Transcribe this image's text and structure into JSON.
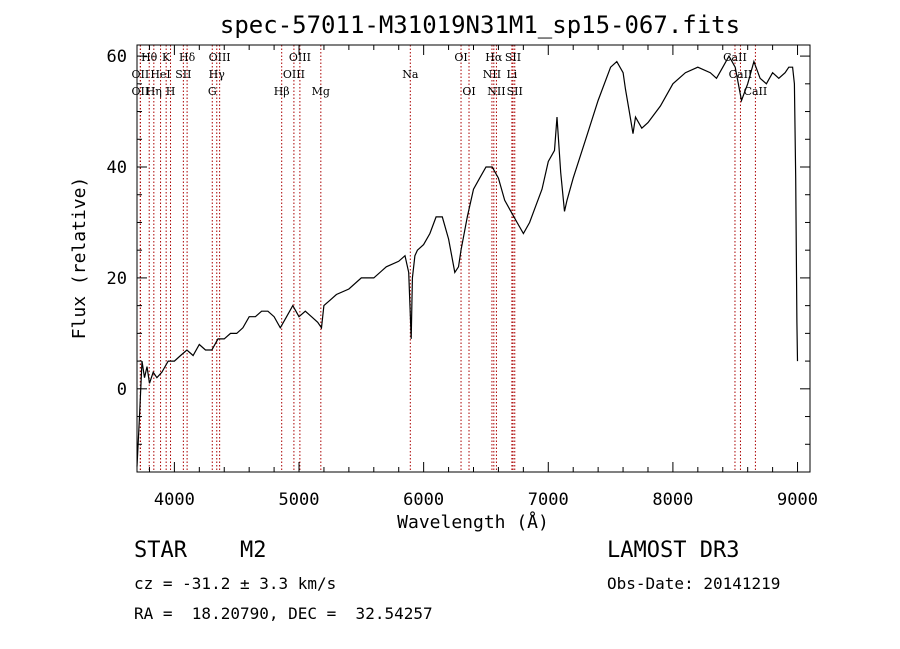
{
  "chart_data": {
    "type": "line",
    "title": "spec-57011-M31019N31M1_sp15-067.fits",
    "xlabel": "Wavelength (Å)",
    "ylabel": "Flux (relative)",
    "xlim": [
      3700,
      9100
    ],
    "ylim": [
      -15,
      62
    ],
    "xticks": [
      4000,
      5000,
      6000,
      7000,
      8000,
      9000
    ],
    "yticks": [
      0,
      20,
      40,
      60
    ],
    "series": [
      {
        "name": "flux",
        "x": [
          3700,
          3720,
          3740,
          3760,
          3780,
          3800,
          3830,
          3860,
          3900,
          3950,
          4000,
          4050,
          4100,
          4150,
          4200,
          4250,
          4300,
          4350,
          4400,
          4450,
          4500,
          4550,
          4600,
          4650,
          4700,
          4750,
          4800,
          4850,
          4900,
          4950,
          5000,
          5050,
          5100,
          5150,
          5180,
          5200,
          5250,
          5300,
          5400,
          5500,
          5600,
          5700,
          5800,
          5850,
          5880,
          5900,
          5910,
          5930,
          5950,
          6000,
          6050,
          6100,
          6150,
          6200,
          6250,
          6280,
          6300,
          6350,
          6400,
          6450,
          6500,
          6550,
          6600,
          6650,
          6700,
          6750,
          6800,
          6850,
          6900,
          6950,
          7000,
          7050,
          7070,
          7100,
          7130,
          7150,
          7200,
          7300,
          7400,
          7500,
          7550,
          7600,
          7620,
          7650,
          7680,
          7700,
          7750,
          7800,
          7900,
          8000,
          8100,
          8200,
          8300,
          8350,
          8400,
          8450,
          8500,
          8550,
          8600,
          8650,
          8700,
          8750,
          8800,
          8850,
          8900,
          8930,
          8960,
          8975,
          8985,
          8995,
          9000
        ],
        "y": [
          -14,
          -5,
          5,
          2,
          4,
          1,
          3,
          2,
          3,
          5,
          5,
          6,
          7,
          6,
          8,
          7,
          7,
          9,
          9,
          10,
          10,
          11,
          13,
          13,
          14,
          14,
          13,
          11,
          13,
          15,
          13,
          14,
          13,
          12,
          11,
          15,
          16,
          17,
          18,
          20,
          20,
          22,
          23,
          24,
          21,
          9,
          20,
          24,
          25,
          26,
          28,
          31,
          31,
          27,
          21,
          22,
          25,
          31,
          36,
          38,
          40,
          40,
          38,
          34,
          32,
          30,
          28,
          30,
          33,
          36,
          41,
          43,
          49,
          39,
          32,
          34,
          38,
          45,
          52,
          58,
          59,
          57,
          54,
          50,
          46,
          49,
          47,
          48,
          51,
          55,
          57,
          58,
          57,
          56,
          58,
          60,
          58,
          52,
          55,
          59,
          56,
          55,
          57,
          56,
          57,
          58,
          58,
          55,
          38,
          12,
          5
        ]
      }
    ],
    "lines": [
      {
        "name": "Hθ",
        "wave": 3798,
        "row": 1
      },
      {
        "name": "OII",
        "wave": 3727,
        "row": 2
      },
      {
        "name": "OII",
        "wave": 3727,
        "row": 3
      },
      {
        "name": "K",
        "wave": 3934,
        "row": 1
      },
      {
        "name": "HeI",
        "wave": 3889,
        "row": 2
      },
      {
        "name": "Hη",
        "wave": 3835,
        "row": 3
      },
      {
        "name": "H",
        "wave": 3969,
        "row": 3
      },
      {
        "name": "SII",
        "wave": 4072,
        "row": 2
      },
      {
        "name": "Hδ",
        "wave": 4102,
        "row": 1
      },
      {
        "name": "OIII",
        "wave": 4363,
        "row": 1
      },
      {
        "name": "Hγ",
        "wave": 4340,
        "row": 2
      },
      {
        "name": "G",
        "wave": 4304,
        "row": 3
      },
      {
        "name": "Hβ",
        "wave": 4861,
        "row": 3
      },
      {
        "name": "OIII",
        "wave": 5007,
        "row": 1
      },
      {
        "name": "OIII",
        "wave": 4959,
        "row": 2
      },
      {
        "name": "Mg",
        "wave": 5175,
        "row": 3
      },
      {
        "name": "Na",
        "wave": 5893,
        "row": 2
      },
      {
        "name": "OI",
        "wave": 6300,
        "row": 1
      },
      {
        "name": "OI",
        "wave": 6364,
        "row": 3
      },
      {
        "name": "Hα",
        "wave": 6563,
        "row": 1
      },
      {
        "name": "NII",
        "wave": 6548,
        "row": 2
      },
      {
        "name": "NII",
        "wave": 6584,
        "row": 3
      },
      {
        "name": "SII",
        "wave": 6717,
        "row": 1
      },
      {
        "name": "Li",
        "wave": 6708,
        "row": 2
      },
      {
        "name": "SII",
        "wave": 6731,
        "row": 3
      },
      {
        "name": "CaII",
        "wave": 8498,
        "row": 1
      },
      {
        "name": "CaII",
        "wave": 8542,
        "row": 2
      },
      {
        "name": "CaII",
        "wave": 8662,
        "row": 3
      }
    ]
  },
  "info": {
    "class_label": "STAR",
    "subclass": "M2",
    "survey": "LAMOST DR3",
    "cz": "cz = -31.2 ± 3.3 km/s",
    "obs_date": "Obs-Date: 20141219",
    "coords": "RA =  18.20790, DEC =  32.54257"
  },
  "colors": {
    "line_marker": "#aa0000",
    "spectrum": "#000000"
  }
}
